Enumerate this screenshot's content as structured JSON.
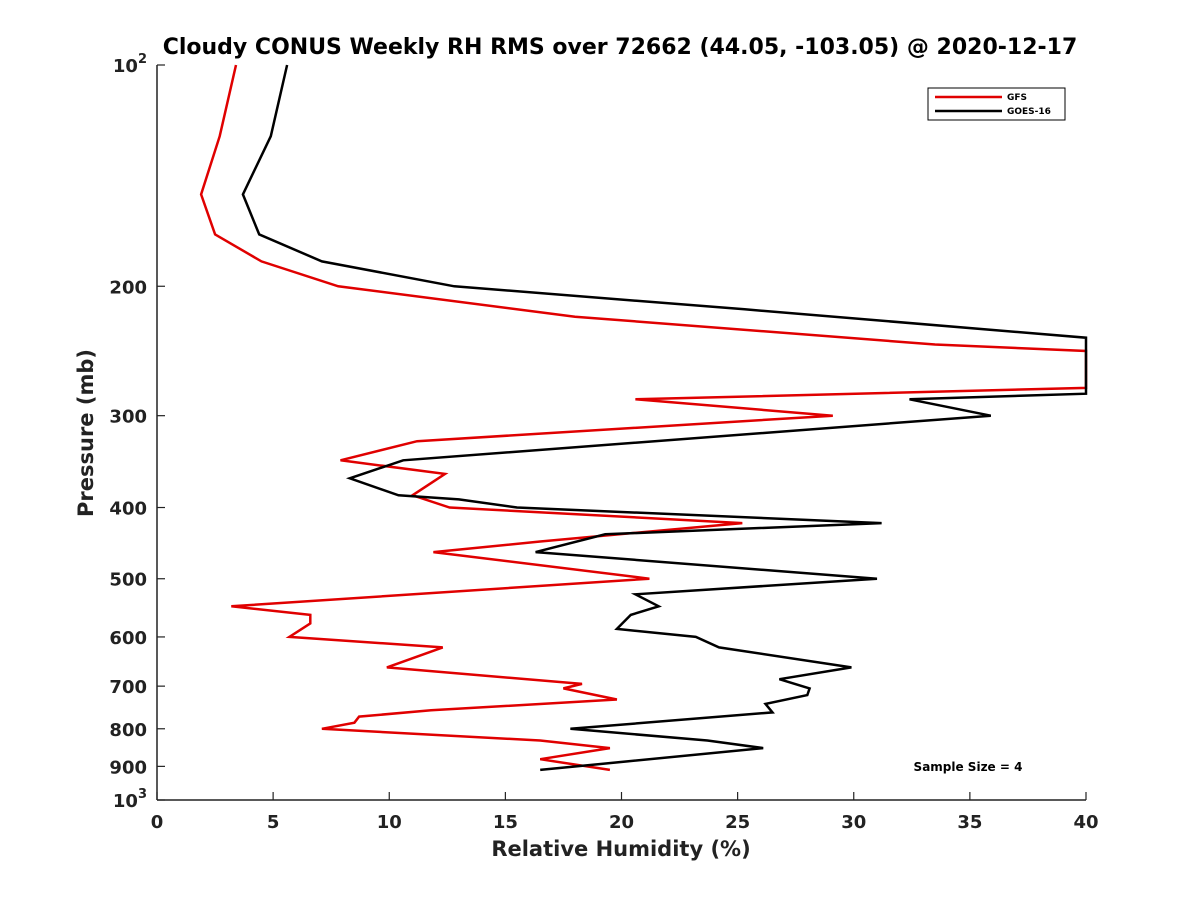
{
  "chart_data": {
    "type": "line",
    "title": "Cloudy CONUS Weekly RH RMS over 72662 (44.05, -103.05) @ 2020-12-17",
    "xlabel": "Relative Humidity (%)",
    "ylabel": "Pressure (mb)",
    "xlim": [
      0,
      40
    ],
    "ylim": [
      100,
      1000
    ],
    "y_scale": "log",
    "y_reversed": true,
    "grid": false,
    "legend_position": "top-right",
    "x_ticks": [
      "0",
      "5",
      "10",
      "15",
      "20",
      "25",
      "30",
      "35",
      "40"
    ],
    "y_ticks": [
      {
        "value": 100,
        "base": "10",
        "exp": "2"
      },
      {
        "value": 200,
        "label": "200"
      },
      {
        "value": 300,
        "label": "300"
      },
      {
        "value": 400,
        "label": "400"
      },
      {
        "value": 500,
        "label": "500"
      },
      {
        "value": 600,
        "label": "600"
      },
      {
        "value": 700,
        "label": "700"
      },
      {
        "value": 800,
        "label": "800"
      },
      {
        "value": 900,
        "label": "900"
      },
      {
        "value": 1000,
        "base": "10",
        "exp": "3"
      }
    ],
    "series": [
      {
        "name": "GFS",
        "color": "#e00000",
        "points": [
          [
            3.4,
            100
          ],
          [
            2.7,
            125
          ],
          [
            1.9,
            150
          ],
          [
            2.5,
            170
          ],
          [
            4.5,
            185
          ],
          [
            7.8,
            200
          ],
          [
            18,
            220
          ],
          [
            33.5,
            240
          ],
          [
            40,
            245
          ],
          [
            40,
            275
          ],
          [
            20.6,
            285
          ],
          [
            29.1,
            300
          ],
          [
            11.2,
            325
          ],
          [
            7.9,
            345
          ],
          [
            12.4,
            360
          ],
          [
            11,
            385
          ],
          [
            12.6,
            400
          ],
          [
            25.2,
            420
          ],
          [
            16.5,
            445
          ],
          [
            11.9,
            460
          ],
          [
            21.2,
            500
          ],
          [
            3.2,
            545
          ],
          [
            6.6,
            560
          ],
          [
            6.6,
            575
          ],
          [
            5.7,
            600
          ],
          [
            12.3,
            620
          ],
          [
            9.9,
            660
          ],
          [
            18.3,
            695
          ],
          [
            17.5,
            705
          ],
          [
            19.8,
            730
          ],
          [
            11.8,
            755
          ],
          [
            8.7,
            770
          ],
          [
            8.5,
            785
          ],
          [
            7.1,
            800
          ],
          [
            16.5,
            830
          ],
          [
            19.5,
            850
          ],
          [
            16.5,
            880
          ],
          [
            19.5,
            910
          ]
        ]
      },
      {
        "name": "GOES-16",
        "color": "#000000",
        "points": [
          [
            5.6,
            100
          ],
          [
            4.9,
            125
          ],
          [
            3.7,
            150
          ],
          [
            4.4,
            170
          ],
          [
            7.1,
            185
          ],
          [
            12.8,
            200
          ],
          [
            25.3,
            215
          ],
          [
            40,
            235
          ],
          [
            40,
            280
          ],
          [
            32.4,
            285
          ],
          [
            35.9,
            300
          ],
          [
            10.6,
            345
          ],
          [
            8.3,
            365
          ],
          [
            10.4,
            385
          ],
          [
            13,
            390
          ],
          [
            15.5,
            400
          ],
          [
            31.2,
            420
          ],
          [
            19.3,
            435
          ],
          [
            16.3,
            460
          ],
          [
            31,
            500
          ],
          [
            20.6,
            525
          ],
          [
            21.6,
            545
          ],
          [
            20.4,
            560
          ],
          [
            19.8,
            585
          ],
          [
            23.2,
            600
          ],
          [
            24.2,
            620
          ],
          [
            29.9,
            660
          ],
          [
            26.8,
            685
          ],
          [
            28.1,
            705
          ],
          [
            28,
            720
          ],
          [
            26.2,
            740
          ],
          [
            26.5,
            760
          ],
          [
            17.8,
            800
          ],
          [
            23.7,
            830
          ],
          [
            26.1,
            850
          ],
          [
            16.5,
            910
          ]
        ]
      }
    ],
    "annotations": [
      "Sample Size = 4"
    ]
  }
}
